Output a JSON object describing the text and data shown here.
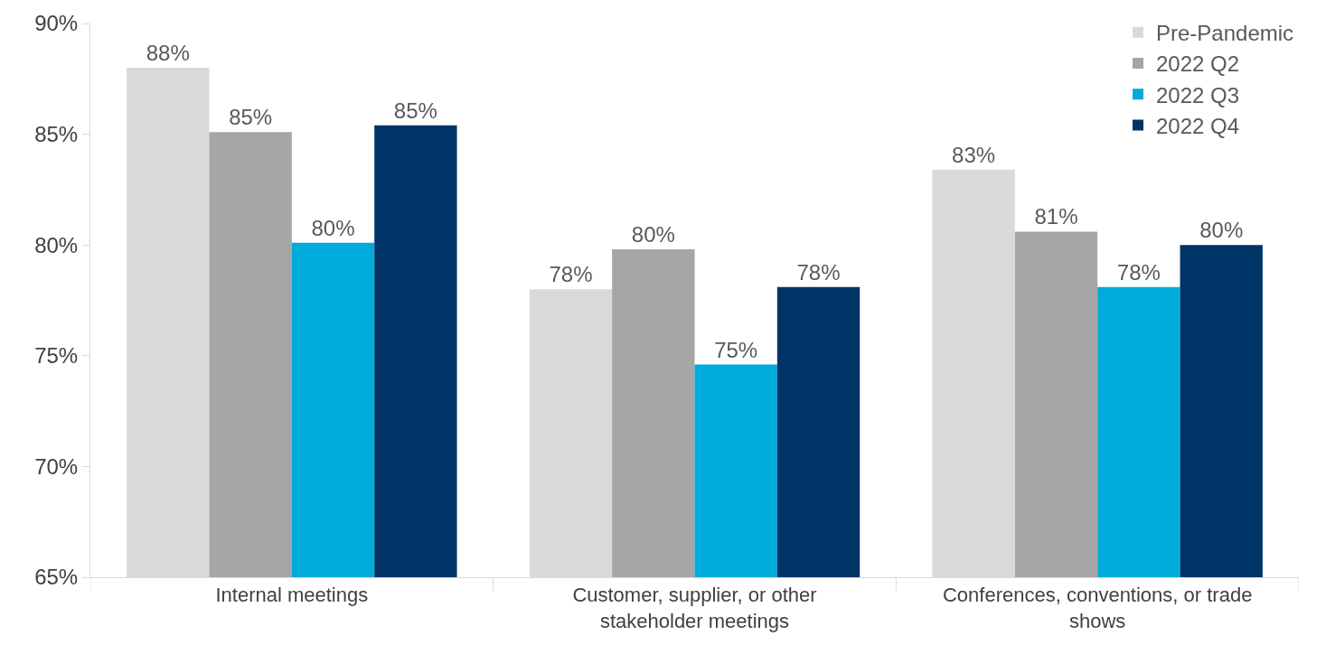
{
  "chart_data": {
    "type": "bar",
    "categories": [
      "Internal meetings",
      "Customer, supplier, or other stakeholder meetings",
      "Conferences, conventions, or trade shows"
    ],
    "series": [
      {
        "name": "Pre-Pandemic",
        "color": "#d9d9d9",
        "values": [
          88.0,
          78.0,
          83.4
        ],
        "value_labels": [
          "88%",
          "78%",
          "83%"
        ]
      },
      {
        "name": "2022 Q2",
        "color": "#a6a6a6",
        "values": [
          85.1,
          79.8,
          80.6
        ],
        "value_labels": [
          "85%",
          "80%",
          "81%"
        ]
      },
      {
        "name": "2022 Q3",
        "color": "#00aadb",
        "values": [
          80.1,
          74.6,
          78.1
        ],
        "value_labels": [
          "80%",
          "75%",
          "78%"
        ]
      },
      {
        "name": "2022 Q4",
        "color": "#003366",
        "values": [
          85.4,
          78.1,
          80.0
        ],
        "value_labels": [
          "85%",
          "78%",
          "80%"
        ]
      }
    ],
    "ylim": [
      65,
      90
    ],
    "yticks": [
      {
        "value": 65,
        "label": "65%"
      },
      {
        "value": 70,
        "label": "70%"
      },
      {
        "value": 75,
        "label": "75%"
      },
      {
        "value": 80,
        "label": "80%"
      },
      {
        "value": 85,
        "label": "85%"
      },
      {
        "value": 90,
        "label": "90%"
      }
    ],
    "legend": "top right"
  }
}
